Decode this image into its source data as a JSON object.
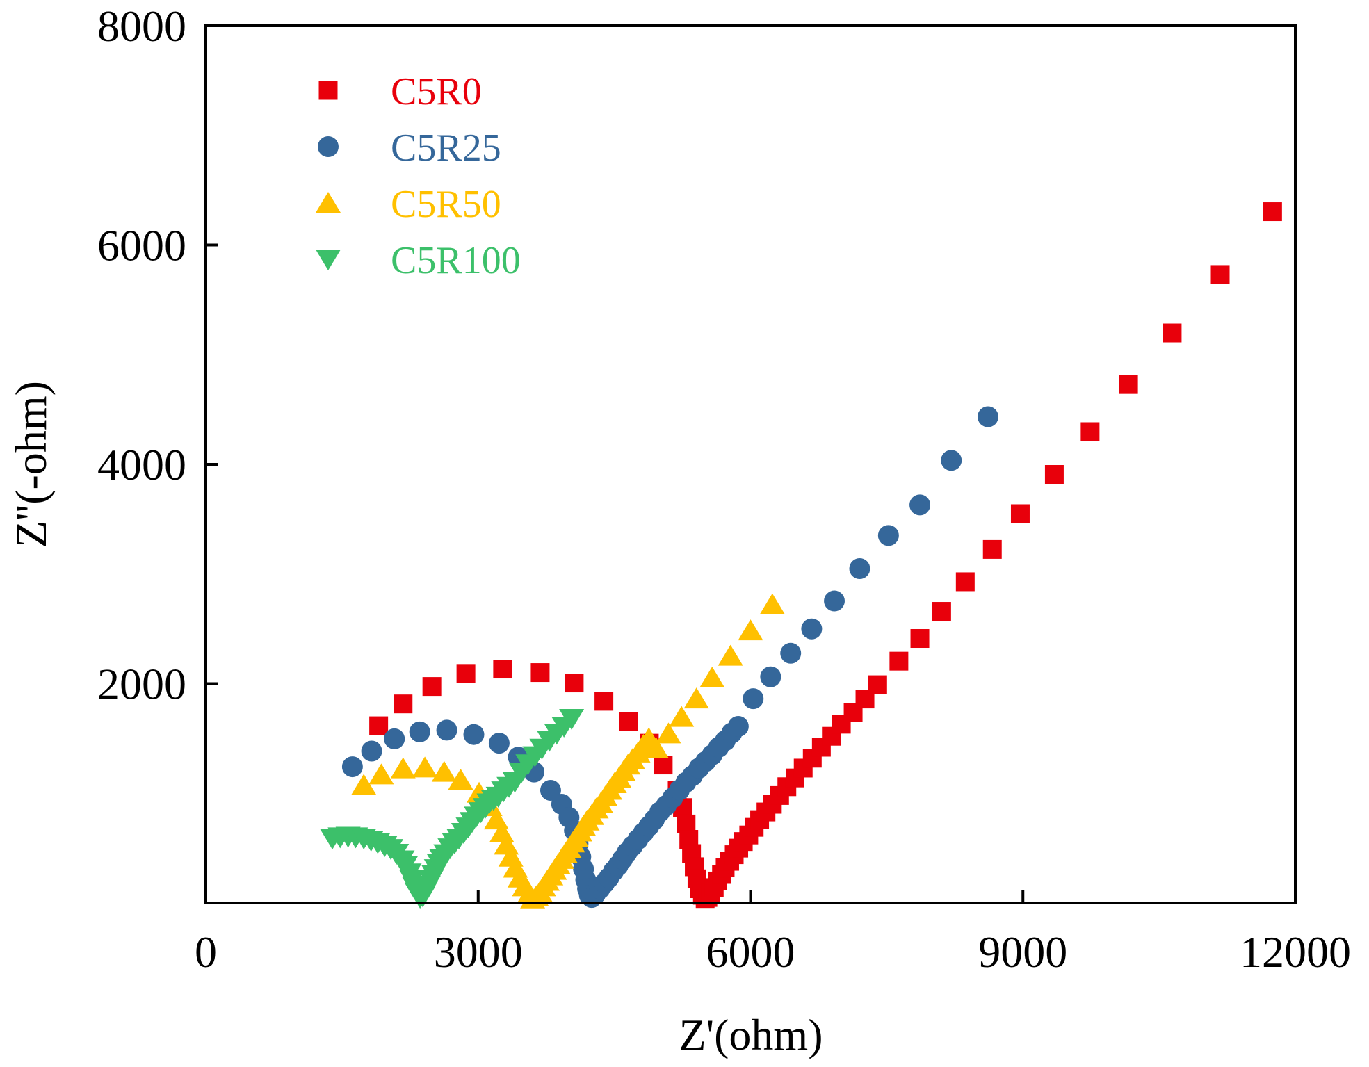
{
  "chart_data": {
    "type": "scatter",
    "title": "",
    "xlabel": "Z'(ohm)",
    "ylabel": "Z''(-ohm)",
    "xlim": [
      0,
      12000
    ],
    "ylim": [
      0,
      8000
    ],
    "xticks": [
      0,
      3000,
      6000,
      9000,
      12000
    ],
    "xtick_labels": [
      "0",
      "3000",
      "6000",
      "9000",
      "12000"
    ],
    "yticks": [
      2000,
      4000,
      6000,
      8000
    ],
    "ytick_labels": [
      "2000",
      "4000",
      "6000",
      "8000"
    ],
    "grid": false,
    "legend_position": "top-left",
    "series": [
      {
        "name": "C5R0",
        "marker": "square",
        "color": "#E8000B",
        "x": [
          1904,
          2173,
          2490,
          2865,
          3269,
          3683,
          4058,
          4385,
          4654,
          4885,
          5038,
          5192,
          5250,
          5290,
          5320,
          5350,
          5380,
          5410,
          5440,
          5470,
          5500,
          5530,
          5560,
          5600,
          5640,
          5680,
          5720,
          5770,
          5820,
          5870,
          5920,
          5980,
          6040,
          6100,
          6170,
          6240,
          6320,
          6400,
          6490,
          6580,
          6680,
          6780,
          6890,
          7000,
          7130,
          7260,
          7400,
          7634,
          7865,
          8105,
          8365,
          8663,
          8971,
          9346,
          9740,
          10163,
          10644,
          11173,
          11750
        ],
        "y": [
          1616,
          1815,
          1974,
          2093,
          2133,
          2101,
          2006,
          1839,
          1656,
          1457,
          1258,
          1027,
          870,
          720,
          580,
          450,
          330,
          220,
          130,
          70,
          40,
          50,
          90,
          140,
          200,
          260,
          320,
          380,
          440,
          500,
          560,
          620,
          690,
          760,
          830,
          900,
          980,
          1060,
          1140,
          1230,
          1320,
          1420,
          1520,
          1630,
          1740,
          1860,
          1990,
          2205,
          2412,
          2659,
          2929,
          3224,
          3550,
          3908,
          4298,
          4728,
          5198,
          5731,
          6304
        ]
      },
      {
        "name": "C5R25",
        "marker": "circle",
        "color": "#35679A",
        "x": [
          1615,
          1827,
          2077,
          2356,
          2654,
          2952,
          3231,
          3442,
          3615,
          3798,
          3920,
          4000,
          4060,
          4100,
          4130,
          4160,
          4185,
          4205,
          4225,
          4250,
          4290,
          4340,
          4390,
          4440,
          4490,
          4540,
          4590,
          4640,
          4700,
          4760,
          4820,
          4880,
          4940,
          5000,
          5072,
          5144,
          5216,
          5288,
          5360,
          5432,
          5505,
          5577,
          5649,
          5721,
          5793,
          5865,
          6029,
          6221,
          6442,
          6673,
          6923,
          7202,
          7519,
          7865,
          8211,
          8615
        ],
        "y": [
          1242,
          1385,
          1497,
          1560,
          1576,
          1536,
          1457,
          1330,
          1194,
          1027,
          900,
          780,
          660,
          540,
          420,
          310,
          210,
          130,
          70,
          50,
          80,
          130,
          180,
          230,
          290,
          340,
          400,
          460,
          520,
          580,
          640,
          700,
          760,
          830,
          890,
          960,
          1030,
          1100,
          1160,
          1230,
          1290,
          1350,
          1420,
          1480,
          1550,
          1610,
          1863,
          2062,
          2277,
          2499,
          2754,
          3049,
          3351,
          3630,
          4036,
          4434
        ]
      },
      {
        "name": "C5R50",
        "marker": "triangle-up",
        "color": "#FFC000",
        "x": [
          1740,
          1933,
          2173,
          2413,
          2625,
          2807,
          3010,
          3130,
          3200,
          3260,
          3310,
          3360,
          3410,
          3460,
          3510,
          3560,
          3600,
          3640,
          3680,
          3720,
          3760,
          3800,
          3840,
          3880,
          3920,
          3960,
          4000,
          4040,
          4080,
          4120,
          4160,
          4200,
          4250,
          4300,
          4350,
          4400,
          4450,
          4500,
          4550,
          4600,
          4650,
          4700,
          4760,
          4820,
          4880,
          4961,
          5096,
          5240,
          5404,
          5577,
          5779,
          6000,
          6240
        ],
        "y": [
          1075,
          1170,
          1226,
          1234,
          1194,
          1122,
          1003,
          880,
          760,
          640,
          530,
          420,
          320,
          230,
          150,
          80,
          40,
          60,
          100,
          150,
          200,
          250,
          300,
          350,
          400,
          450,
          500,
          550,
          600,
          650,
          700,
          750,
          800,
          860,
          910,
          970,
          1030,
          1090,
          1140,
          1200,
          1260,
          1310,
          1370,
          1440,
          1500,
          1409,
          1544,
          1695,
          1863,
          2054,
          2253,
          2484,
          2722
        ]
      },
      {
        "name": "C5R100",
        "marker": "triangle-down",
        "color": "#3CC06A",
        "x": [
          1394,
          1480,
          1567,
          1650,
          1740,
          1820,
          1894,
          1970,
          2038,
          2100,
          2163,
          2200,
          2240,
          2270,
          2298,
          2330,
          2360,
          2390,
          2420,
          2450,
          2480,
          2510,
          2540,
          2570,
          2600,
          2644,
          2690,
          2740,
          2788,
          2840,
          2890,
          2933,
          2980,
          3030,
          3077,
          3120,
          3170,
          3221,
          3280,
          3340,
          3404,
          3475,
          3548,
          3625,
          3702,
          3785,
          3865,
          3945,
          4029
        ],
        "y": [
          589,
          600,
          605,
          600,
          589,
          570,
          549,
          520,
          494,
          450,
          390,
          340,
          271,
          210,
          151,
          90,
          50,
          60,
          110,
          160,
          210,
          260,
          310,
          360,
          400,
          446,
          500,
          545,
          589,
          640,
          690,
          740,
          790,
          830,
          868,
          910,
          940,
          971,
          1020,
          1060,
          1106,
          1190,
          1266,
          1340,
          1409,
          1480,
          1544,
          1610,
          1680
        ]
      }
    ]
  }
}
